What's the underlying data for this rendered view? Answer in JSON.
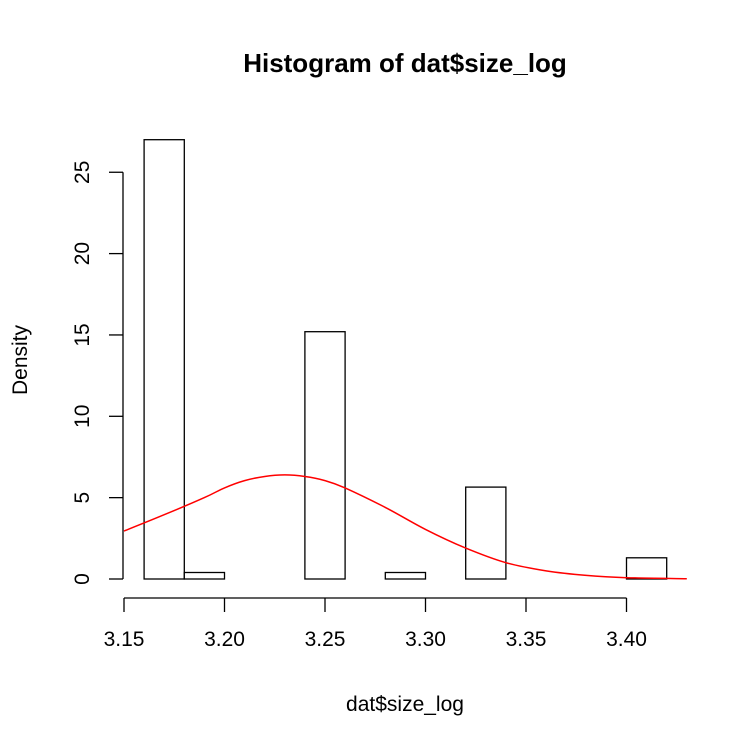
{
  "chart_data": {
    "type": "bar",
    "title": "Histogram of dat$size_log",
    "xlabel": "dat$size_log",
    "ylabel": "Density",
    "xlim": [
      3.15,
      3.43
    ],
    "ylim": [
      0,
      27
    ],
    "x_ticks": [
      "3.15",
      "3.20",
      "3.25",
      "3.30",
      "3.35",
      "3.40"
    ],
    "y_ticks": [
      "0",
      "5",
      "10",
      "15",
      "20",
      "25"
    ],
    "bins": [
      {
        "x0": 3.16,
        "x1": 3.18,
        "density": 27.0
      },
      {
        "x0": 3.18,
        "x1": 3.2,
        "density": 0.4
      },
      {
        "x0": 3.2,
        "x1": 3.22,
        "density": 0.0
      },
      {
        "x0": 3.22,
        "x1": 3.24,
        "density": 0.0
      },
      {
        "x0": 3.24,
        "x1": 3.26,
        "density": 15.2
      },
      {
        "x0": 3.26,
        "x1": 3.28,
        "density": 0.0
      },
      {
        "x0": 3.28,
        "x1": 3.3,
        "density": 0.4
      },
      {
        "x0": 3.3,
        "x1": 3.32,
        "density": 0.0
      },
      {
        "x0": 3.32,
        "x1": 3.34,
        "density": 5.65
      },
      {
        "x0": 3.34,
        "x1": 3.36,
        "density": 0.0
      },
      {
        "x0": 3.36,
        "x1": 3.38,
        "density": 0.0
      },
      {
        "x0": 3.38,
        "x1": 3.4,
        "density": 0.0
      },
      {
        "x0": 3.4,
        "x1": 3.42,
        "density": 1.3
      }
    ],
    "density_curve": {
      "color": "#ff0000",
      "x": [
        3.15,
        3.17,
        3.19,
        3.2,
        3.21,
        3.22,
        3.23,
        3.24,
        3.25,
        3.26,
        3.28,
        3.3,
        3.32,
        3.34,
        3.36,
        3.38,
        3.4,
        3.43
      ],
      "y": [
        2.95,
        3.95,
        5.0,
        5.6,
        6.05,
        6.3,
        6.4,
        6.3,
        6.05,
        5.6,
        4.4,
        3.05,
        1.9,
        1.0,
        0.5,
        0.22,
        0.08,
        0.02
      ]
    },
    "bar_fill": "#ffffff",
    "bar_stroke": "#000000",
    "grid": false
  }
}
